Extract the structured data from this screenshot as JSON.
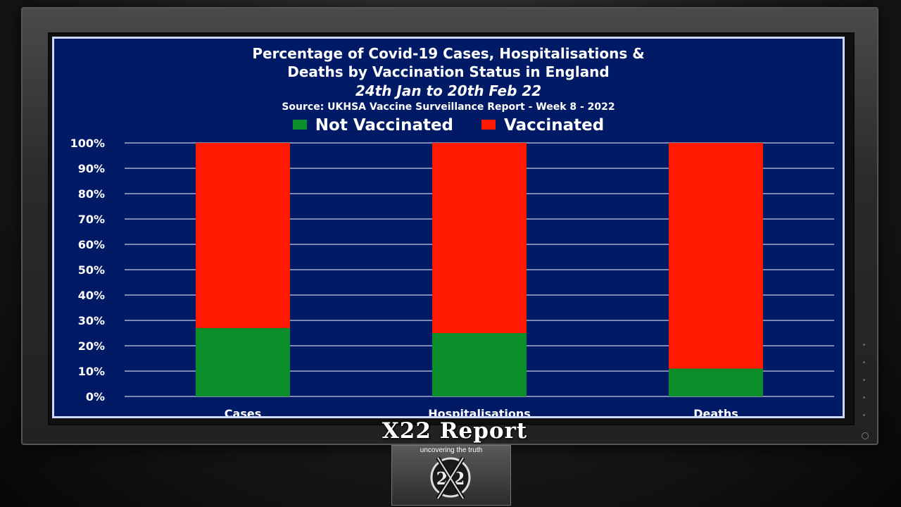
{
  "chart_data": {
    "type": "bar",
    "stacked": true,
    "percent": true,
    "title": "Percentage of Covid-19 Cases, Hospitalisations &",
    "title_line2": "Deaths by Vaccination Status in England",
    "subtitle": "24th Jan to 20th Feb 22",
    "source": "Source: UKHSA Vaccine Surveillance Report - Week 8 - 2022",
    "categories": [
      "Cases",
      "Hospitalisations",
      "Deaths"
    ],
    "series": [
      {
        "name": "Not Vaccinated",
        "values": [
          27,
          25,
          11
        ],
        "color": "#0a8f2a"
      },
      {
        "name": "Vaccinated",
        "values": [
          73,
          75,
          89
        ],
        "color": "#ff1a00"
      }
    ],
    "y_ticks": [
      "0%",
      "10%",
      "20%",
      "30%",
      "40%",
      "50%",
      "60%",
      "70%",
      "80%",
      "90%",
      "100%"
    ],
    "ylim": [
      0,
      100
    ],
    "grid": true,
    "legend_position": "top",
    "background": "#001a66"
  },
  "branding": {
    "name": "X22 Report",
    "tagline": "uncovering the truth"
  }
}
